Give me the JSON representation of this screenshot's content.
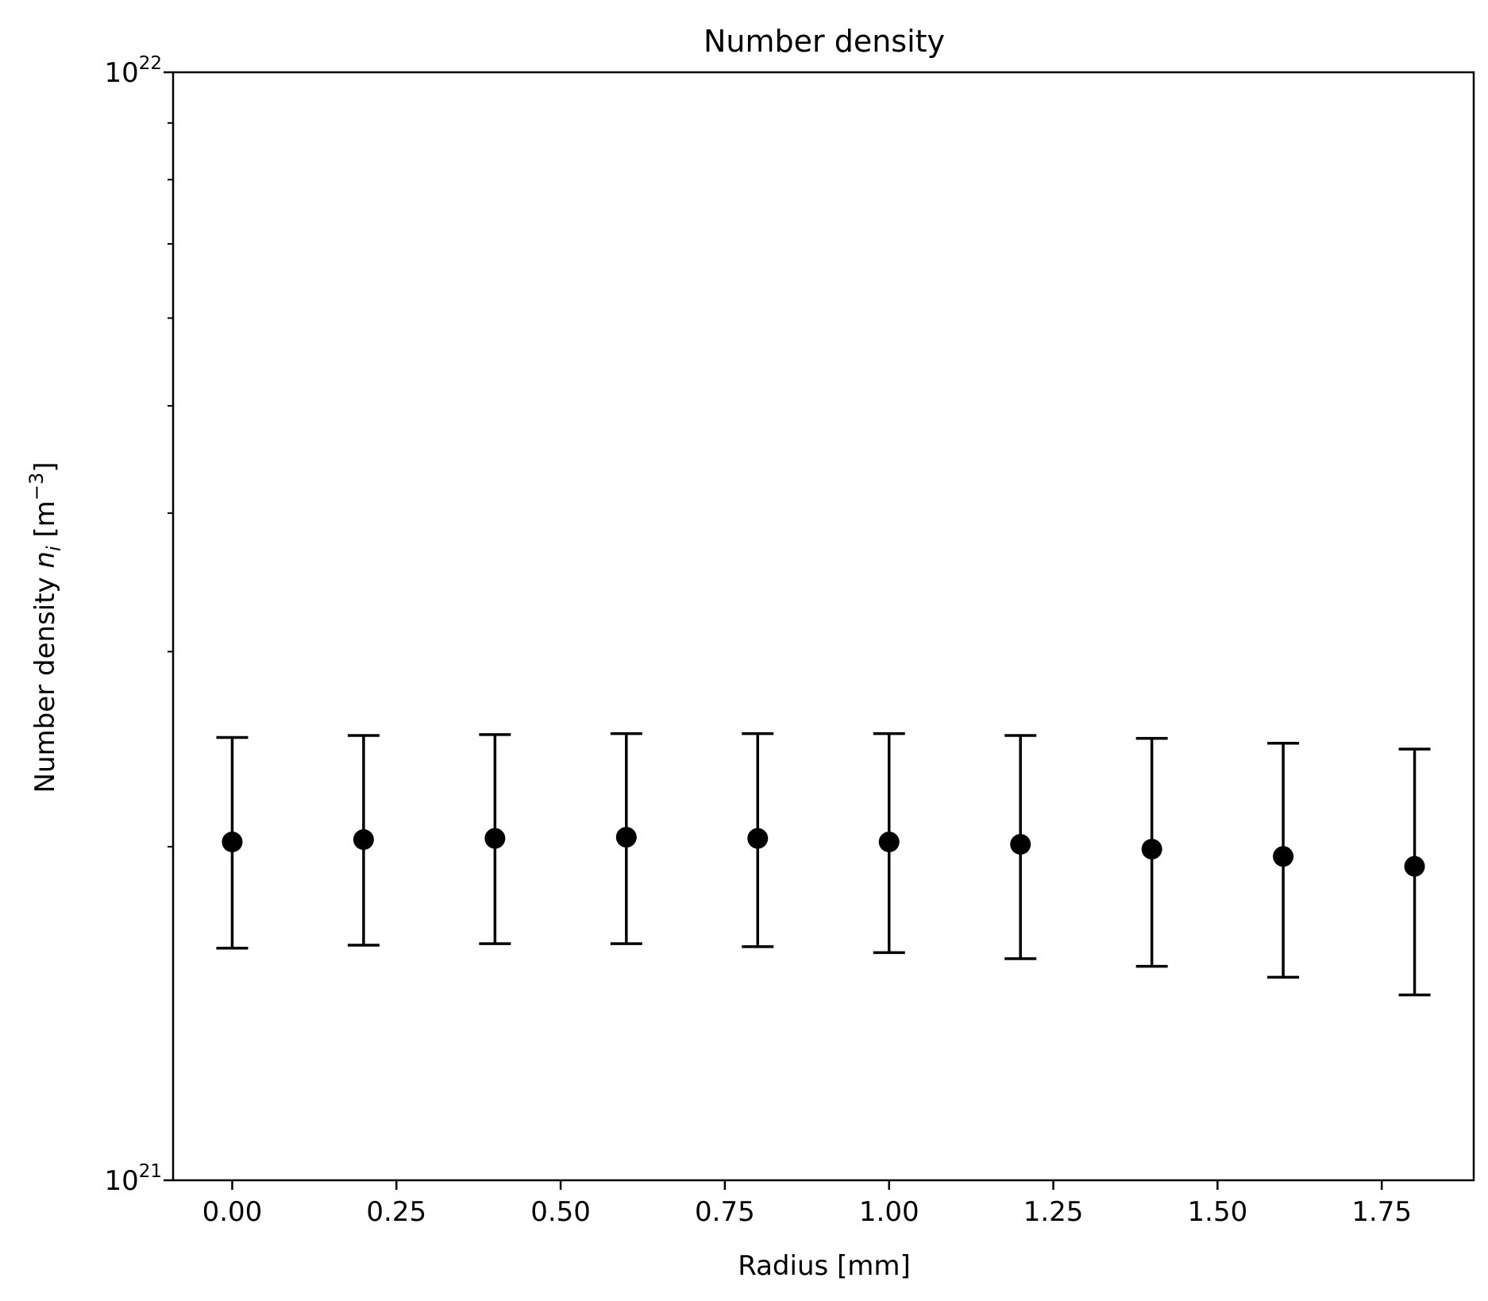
{
  "chart_data": {
    "type": "scatter",
    "title": "Number density",
    "xlabel": "Radius [mm]",
    "ylabel": {
      "main": "Number density ",
      "symbol": "n",
      "subscript": "i",
      "unit_open": " [m",
      "unit_exp": "−3",
      "unit_close": "]"
    },
    "xlim": [
      -0.09,
      1.89
    ],
    "ylim": [
      1e+21,
      1e+22
    ],
    "yscale": "log",
    "x_ticks": [
      {
        "value": 0.0,
        "label": "0.00"
      },
      {
        "value": 0.25,
        "label": "0.25"
      },
      {
        "value": 0.5,
        "label": "0.50"
      },
      {
        "value": 0.75,
        "label": "0.75"
      },
      {
        "value": 1.0,
        "label": "1.00"
      },
      {
        "value": 1.25,
        "label": "1.25"
      },
      {
        "value": 1.5,
        "label": "1.50"
      },
      {
        "value": 1.75,
        "label": "1.75"
      }
    ],
    "y_ticks": [
      {
        "value": 1e+21,
        "base": "10",
        "exp": "21"
      },
      {
        "value": 1e+22,
        "base": "10",
        "exp": "22"
      }
    ],
    "y_minor_ticks": [
      2e+21,
      3e+21,
      4e+21,
      5e+21,
      6e+21,
      7e+21,
      8e+21,
      9e+21
    ],
    "grid": false,
    "legend": "none",
    "marker_color": "#000000",
    "series": [
      {
        "points": [
          {
            "x": 0.0,
            "y": 2.02e+21,
            "ylow": 1.62e+21,
            "yhigh": 2.51e+21
          },
          {
            "x": 0.2,
            "y": 2.03e+21,
            "ylow": 1.63e+21,
            "yhigh": 2.52e+21
          },
          {
            "x": 0.4,
            "y": 2.035e+21,
            "ylow": 1.635e+21,
            "yhigh": 2.525e+21
          },
          {
            "x": 0.6,
            "y": 2.04e+21,
            "ylow": 1.635e+21,
            "yhigh": 2.53e+21
          },
          {
            "x": 0.8,
            "y": 2.035e+21,
            "ylow": 1.625e+21,
            "yhigh": 2.53e+21
          },
          {
            "x": 1.0,
            "y": 2.02e+21,
            "ylow": 1.605e+21,
            "yhigh": 2.53e+21
          },
          {
            "x": 1.2,
            "y": 2.01e+21,
            "ylow": 1.585e+21,
            "yhigh": 2.52e+21
          },
          {
            "x": 1.4,
            "y": 1.99e+21,
            "ylow": 1.56e+21,
            "yhigh": 2.505e+21
          },
          {
            "x": 1.6,
            "y": 1.96e+21,
            "ylow": 1.525e+21,
            "yhigh": 2.48e+21
          },
          {
            "x": 1.8,
            "y": 1.92e+21,
            "ylow": 1.47e+21,
            "yhigh": 2.45e+21
          }
        ]
      }
    ]
  }
}
